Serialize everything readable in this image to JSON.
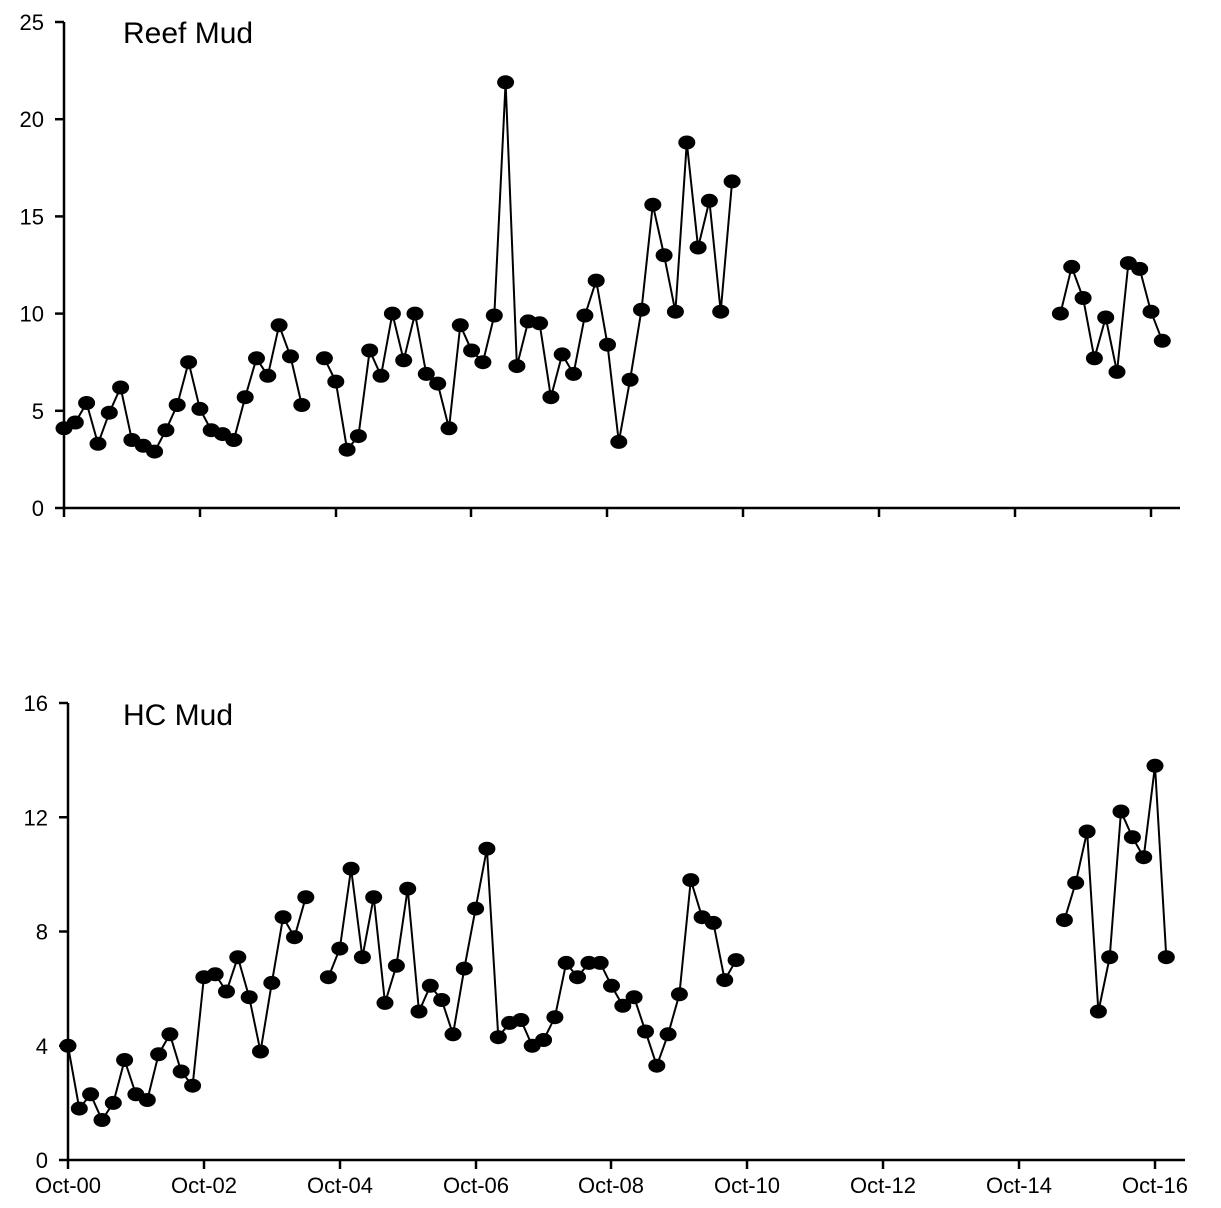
{
  "chart_data": [
    {
      "type": "line",
      "title": "Reef Mud",
      "xlabel": "",
      "ylabel": "",
      "ylim": [
        0,
        25
      ],
      "yticks": [
        0,
        5,
        10,
        15,
        20,
        25
      ],
      "xlim": [
        "2000-10",
        "2016-12"
      ],
      "xticks": [
        "Oct-00",
        "Oct-02",
        "Oct-04",
        "Oct-06",
        "Oct-08",
        "Oct-10",
        "Oct-12",
        "Oct-14",
        "Oct-16"
      ],
      "tick_labels_shown": false,
      "grid": false,
      "legend": "none",
      "marker": "filled-circle",
      "segments": [
        [
          [
            "2000-10",
            4.1
          ],
          [
            "2000-12",
            4.4
          ],
          [
            "2001-02",
            5.4
          ],
          [
            "2001-04",
            3.3
          ],
          [
            "2001-06",
            4.9
          ],
          [
            "2001-08",
            6.2
          ],
          [
            "2001-10",
            3.5
          ],
          [
            "2001-12",
            3.2
          ],
          [
            "2002-02",
            2.9
          ],
          [
            "2002-04",
            4.0
          ],
          [
            "2002-06",
            5.3
          ],
          [
            "2002-08",
            7.5
          ],
          [
            "2002-10",
            5.1
          ],
          [
            "2002-12",
            4.0
          ],
          [
            "2003-02",
            3.8
          ],
          [
            "2003-04",
            3.5
          ],
          [
            "2003-06",
            5.7
          ],
          [
            "2003-08",
            7.7
          ],
          [
            "2003-10",
            6.8
          ],
          [
            "2003-12",
            9.4
          ],
          [
            "2004-02",
            7.8
          ],
          [
            "2004-04",
            5.3
          ]
        ],
        [
          [
            "2004-08",
            7.7
          ],
          [
            "2004-10",
            6.5
          ],
          [
            "2004-12",
            3.0
          ],
          [
            "2005-02",
            3.7
          ],
          [
            "2005-04",
            8.1
          ],
          [
            "2005-06",
            6.8
          ],
          [
            "2005-08",
            10.0
          ],
          [
            "2005-10",
            7.6
          ],
          [
            "2005-12",
            10.0
          ],
          [
            "2006-02",
            6.9
          ],
          [
            "2006-04",
            6.4
          ],
          [
            "2006-06",
            4.1
          ],
          [
            "2006-08",
            9.4
          ],
          [
            "2006-10",
            8.1
          ],
          [
            "2006-12",
            7.5
          ],
          [
            "2007-02",
            9.9
          ],
          [
            "2007-04",
            21.9
          ],
          [
            "2007-06",
            7.3
          ],
          [
            "2007-08",
            9.6
          ],
          [
            "2007-10",
            9.5
          ],
          [
            "2007-12",
            5.7
          ],
          [
            "2008-02",
            7.9
          ],
          [
            "2008-04",
            6.9
          ],
          [
            "2008-06",
            9.9
          ],
          [
            "2008-08",
            11.7
          ],
          [
            "2008-10",
            8.4
          ],
          [
            "2008-12",
            3.4
          ],
          [
            "2009-02",
            6.6
          ],
          [
            "2009-04",
            10.2
          ],
          [
            "2009-06",
            15.6
          ],
          [
            "2009-08",
            13.0
          ],
          [
            "2009-10",
            10.1
          ],
          [
            "2009-12",
            18.8
          ],
          [
            "2010-02",
            13.4
          ],
          [
            "2010-04",
            15.8
          ],
          [
            "2010-06",
            10.1
          ],
          [
            "2010-08",
            16.8
          ]
        ],
        [
          [
            "2015-06",
            10.0
          ],
          [
            "2015-08",
            12.4
          ],
          [
            "2015-10",
            10.8
          ],
          [
            "2015-12",
            7.7
          ],
          [
            "2016-02",
            9.8
          ],
          [
            "2016-04",
            7.0
          ],
          [
            "2016-06",
            12.6
          ],
          [
            "2016-08",
            12.3
          ],
          [
            "2016-10",
            10.1
          ],
          [
            "2016-12",
            8.6
          ]
        ]
      ]
    },
    {
      "type": "line",
      "title": "HC Mud",
      "xlabel": "",
      "ylabel": "",
      "ylim": [
        0,
        16
      ],
      "yticks": [
        0,
        4,
        8,
        12,
        16
      ],
      "xlim": [
        "2000-10",
        "2016-12"
      ],
      "xticks": [
        "Oct-00",
        "Oct-02",
        "Oct-04",
        "Oct-06",
        "Oct-08",
        "Oct-10",
        "Oct-12",
        "Oct-14",
        "Oct-16"
      ],
      "tick_labels_shown": true,
      "grid": false,
      "legend": "none",
      "marker": "filled-circle",
      "segments": [
        [
          [
            "2000-10",
            4.0
          ],
          [
            "2000-12",
            1.8
          ],
          [
            "2001-02",
            2.3
          ],
          [
            "2001-04",
            1.4
          ],
          [
            "2001-06",
            2.0
          ],
          [
            "2001-08",
            3.5
          ],
          [
            "2001-10",
            2.3
          ],
          [
            "2001-12",
            2.1
          ],
          [
            "2002-02",
            3.7
          ],
          [
            "2002-04",
            4.4
          ],
          [
            "2002-06",
            3.1
          ],
          [
            "2002-08",
            2.6
          ],
          [
            "2002-10",
            6.4
          ],
          [
            "2002-12",
            6.5
          ],
          [
            "2003-02",
            5.9
          ],
          [
            "2003-04",
            7.1
          ],
          [
            "2003-06",
            5.7
          ],
          [
            "2003-08",
            3.8
          ],
          [
            "2003-10",
            6.2
          ],
          [
            "2003-12",
            8.5
          ],
          [
            "2004-02",
            7.8
          ],
          [
            "2004-04",
            9.2
          ]
        ],
        [
          [
            "2004-08",
            6.4
          ],
          [
            "2004-10",
            7.4
          ],
          [
            "2004-12",
            10.2
          ],
          [
            "2005-02",
            7.1
          ],
          [
            "2005-04",
            9.2
          ],
          [
            "2005-06",
            5.5
          ],
          [
            "2005-08",
            6.8
          ],
          [
            "2005-10",
            9.5
          ],
          [
            "2005-12",
            5.2
          ],
          [
            "2006-02",
            6.1
          ],
          [
            "2006-04",
            5.6
          ],
          [
            "2006-06",
            4.4
          ],
          [
            "2006-08",
            6.7
          ],
          [
            "2006-10",
            8.8
          ],
          [
            "2006-12",
            10.9
          ],
          [
            "2007-02",
            4.3
          ],
          [
            "2007-04",
            4.8
          ],
          [
            "2007-06",
            4.9
          ],
          [
            "2007-08",
            4.0
          ],
          [
            "2007-10",
            4.2
          ],
          [
            "2007-12",
            5.0
          ],
          [
            "2008-02",
            6.9
          ],
          [
            "2008-04",
            6.4
          ],
          [
            "2008-06",
            6.9
          ],
          [
            "2008-08",
            6.9
          ],
          [
            "2008-10",
            6.1
          ],
          [
            "2008-12",
            5.4
          ],
          [
            "2009-02",
            5.7
          ],
          [
            "2009-04",
            4.5
          ],
          [
            "2009-06",
            3.3
          ],
          [
            "2009-08",
            4.4
          ],
          [
            "2009-10",
            5.8
          ],
          [
            "2009-12",
            9.8
          ],
          [
            "2010-02",
            8.5
          ],
          [
            "2010-04",
            8.3
          ],
          [
            "2010-06",
            6.3
          ],
          [
            "2010-08",
            7.0
          ]
        ],
        [
          [
            "2015-06",
            8.4
          ],
          [
            "2015-08",
            9.7
          ],
          [
            "2015-10",
            11.5
          ],
          [
            "2015-12",
            5.2
          ],
          [
            "2016-02",
            7.1
          ],
          [
            "2016-04",
            12.2
          ],
          [
            "2016-06",
            11.3
          ],
          [
            "2016-08",
            10.6
          ],
          [
            "2016-10",
            13.8
          ],
          [
            "2016-12",
            7.1
          ]
        ]
      ]
    }
  ]
}
